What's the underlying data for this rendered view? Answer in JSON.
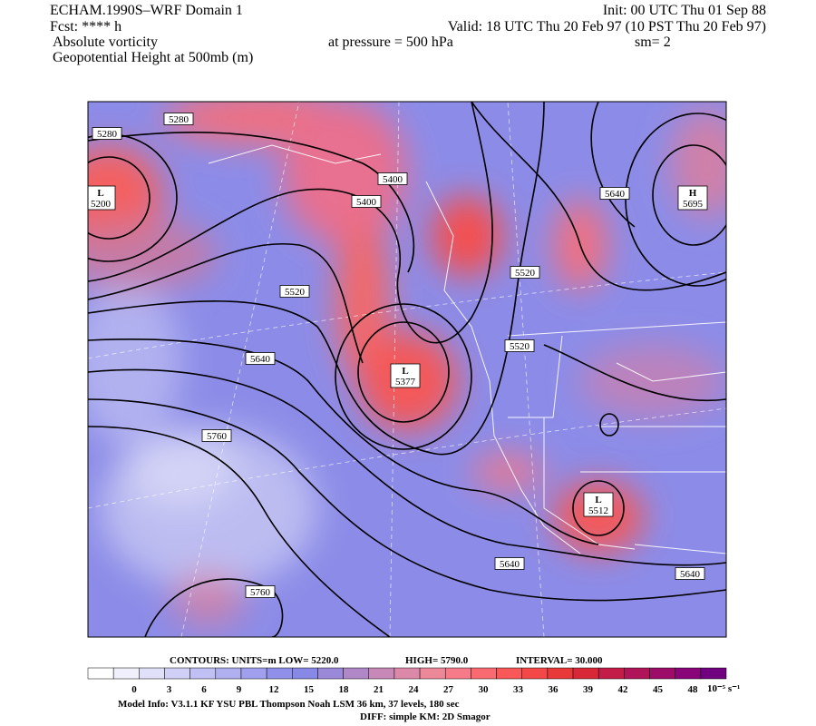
{
  "header": {
    "model": "ECHAM.1990S–WRF Domain 1",
    "forecast": "Fcst: **** h",
    "field": "Absolute vorticity",
    "contour_field": "Geopotential Height at 500mb (m)",
    "init": "Init: 00 UTC Thu 01 Sep 88",
    "valid": "Valid: 18 UTC Thu 20 Feb 97 (10 PST Thu 20 Feb 97)",
    "pressure": "at pressure =  500 hPa",
    "smoothing": "sm= 2"
  },
  "contour_labels": [
    {
      "text": "5280"
    },
    {
      "text": "5280"
    },
    {
      "extreme": "L",
      "text": "5200"
    },
    {
      "text": "5400"
    },
    {
      "text": "5400"
    },
    {
      "text": "5640"
    },
    {
      "extreme": "H",
      "text": "5695"
    },
    {
      "text": "5520"
    },
    {
      "text": "5520"
    },
    {
      "text": "5520"
    },
    {
      "text": "5640"
    },
    {
      "extreme": "L",
      "text": "5377"
    },
    {
      "text": "5760"
    },
    {
      "extreme": "L",
      "text": "5512"
    },
    {
      "text": "5640"
    },
    {
      "text": "5640"
    },
    {
      "text": "5760"
    }
  ],
  "footer": {
    "contours": "CONTOURS:  UNITS=m  LOW=   5220.0",
    "high": "HIGH=  5790.0",
    "interval": "INTERVAL=   30.000",
    "colorbar_labels": [
      "0",
      "3",
      "6",
      "9",
      "12",
      "15",
      "18",
      "21",
      "24",
      "27",
      "30",
      "33",
      "36",
      "39",
      "42",
      "45",
      "48"
    ],
    "colorbar_unit": "10⁻⁵ s⁻¹",
    "colorbar_colors": [
      "#ffffff",
      "#f0f0fc",
      "#e0e0f8",
      "#d0d0f6",
      "#c0c0f4",
      "#b0b0f0",
      "#a0a0ee",
      "#9090ea",
      "#8888e6",
      "#9a88d8",
      "#b088c8",
      "#c888b8",
      "#dc88a8",
      "#ec8898",
      "#f67a88",
      "#f86a70",
      "#f85858",
      "#f44848",
      "#e83838",
      "#d82838",
      "#c41c48",
      "#b01458",
      "#9c0c68",
      "#880478",
      "#700080"
    ],
    "model_info": "Model Info: V3.1.1    KF       YSU PBL   Thompson     Noah LSM  36 km,    37 levels,  180 sec",
    "diff": "DIFF: simple KM: 2D Smagor"
  }
}
